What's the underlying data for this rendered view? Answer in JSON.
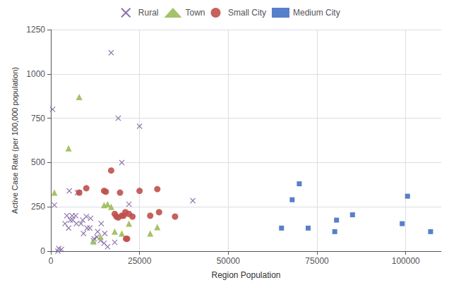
{
  "chart_data": {
    "type": "scatter",
    "xlabel": "Region Population",
    "ylabel": "Active Case Rate (per 100,000 population)",
    "xlim": [
      0,
      110000
    ],
    "ylim": [
      0,
      1250
    ],
    "xticks": [
      0,
      25000,
      50000,
      75000,
      100000
    ],
    "yticks": [
      0,
      250,
      500,
      750,
      1000,
      1250
    ],
    "grid": true,
    "legend": "top",
    "series": [
      {
        "name": "Rural",
        "color": "#8064a2",
        "marker": "x",
        "x": [
          500,
          1000,
          2000,
          2200,
          3000,
          4000,
          4500,
          5000,
          5200,
          5500,
          6000,
          6200,
          7000,
          7200,
          7500,
          8000,
          8500,
          9000,
          9200,
          10000,
          10200,
          11000,
          11200,
          12000,
          12200,
          13000,
          13200,
          14000,
          14200,
          15000,
          15200,
          16000,
          17000,
          18000,
          19000,
          20000,
          22000,
          25000,
          40000
        ],
        "values": [
          800,
          260,
          0,
          15,
          10,
          155,
          200,
          130,
          340,
          175,
          200,
          175,
          200,
          155,
          330,
          330,
          155,
          175,
          100,
          195,
          130,
          130,
          185,
          60,
          70,
          80,
          110,
          60,
          155,
          45,
          100,
          25,
          1120,
          50,
          750,
          500,
          265,
          705,
          285
        ]
      },
      {
        "name": "Town",
        "color": "#9bbb59",
        "marker": "triangle",
        "x": [
          1000,
          5000,
          8000,
          12000,
          14000,
          15000,
          16000,
          17000,
          18000,
          20000,
          22000,
          28000,
          30000
        ],
        "values": [
          330,
          580,
          870,
          55,
          80,
          260,
          265,
          250,
          110,
          100,
          155,
          100,
          135
        ]
      },
      {
        "name": "Small City",
        "color": "#c0504d",
        "marker": "circle",
        "x": [
          8000,
          10000,
          15000,
          15500,
          17000,
          18000,
          18500,
          19000,
          19500,
          20000,
          20500,
          21000,
          21200,
          21500,
          22000,
          23000,
          25000,
          28000,
          30000,
          30500,
          35000
        ],
        "values": [
          330,
          355,
          340,
          335,
          455,
          210,
          195,
          190,
          330,
          200,
          200,
          220,
          70,
          70,
          210,
          195,
          340,
          200,
          350,
          220,
          195
        ]
      },
      {
        "name": "Medium City",
        "color": "#4472c4",
        "marker": "square",
        "x": [
          65000,
          68000,
          70000,
          72500,
          80000,
          80500,
          85000,
          99000,
          100500,
          107000
        ],
        "values": [
          130,
          290,
          380,
          130,
          110,
          175,
          205,
          155,
          310,
          110
        ]
      }
    ]
  }
}
